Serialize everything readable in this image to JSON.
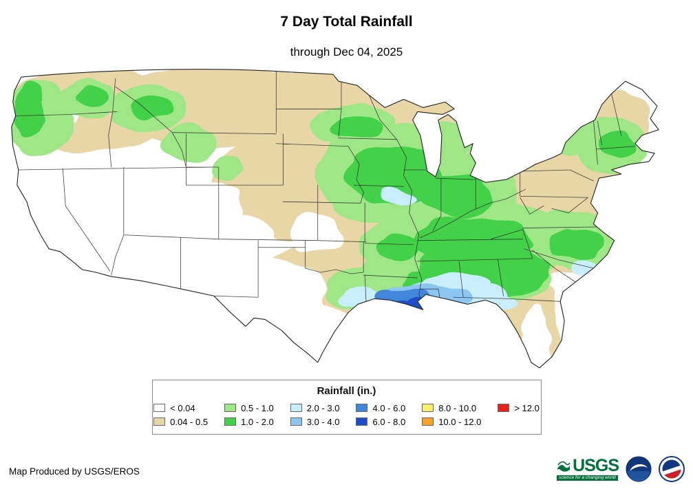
{
  "header": {
    "title": "7 Day Total Rainfall",
    "subtitle": "through Dec 04, 2025"
  },
  "legend": {
    "title": "Rainfall (in.)",
    "items": [
      {
        "label": "< 0.04",
        "color": "#ffffff"
      },
      {
        "label": "0.04 - 0.5",
        "color": "#e9d6a6"
      },
      {
        "label": "0.5 - 1.0",
        "color": "#9fe786"
      },
      {
        "label": "1.0 - 2.0",
        "color": "#42d148"
      },
      {
        "label": "2.0 - 3.0",
        "color": "#c9eefb"
      },
      {
        "label": "3.0 - 4.0",
        "color": "#8cc5f0"
      },
      {
        "label": "4.0 - 6.0",
        "color": "#3f87dc"
      },
      {
        "label": "6.0 - 8.0",
        "color": "#1c4ecb"
      },
      {
        "label": "8.0 - 10.0",
        "color": "#f8ef6f"
      },
      {
        "label": "10.0 - 12.0",
        "color": "#f5a32b"
      },
      {
        "label": "> 12.0",
        "color": "#e5231c"
      }
    ]
  },
  "footer": {
    "credit": "Map Produced by USGS/EROS",
    "usgs_wordmark": "USGS",
    "usgs_tagline": "science for a changing world"
  }
}
